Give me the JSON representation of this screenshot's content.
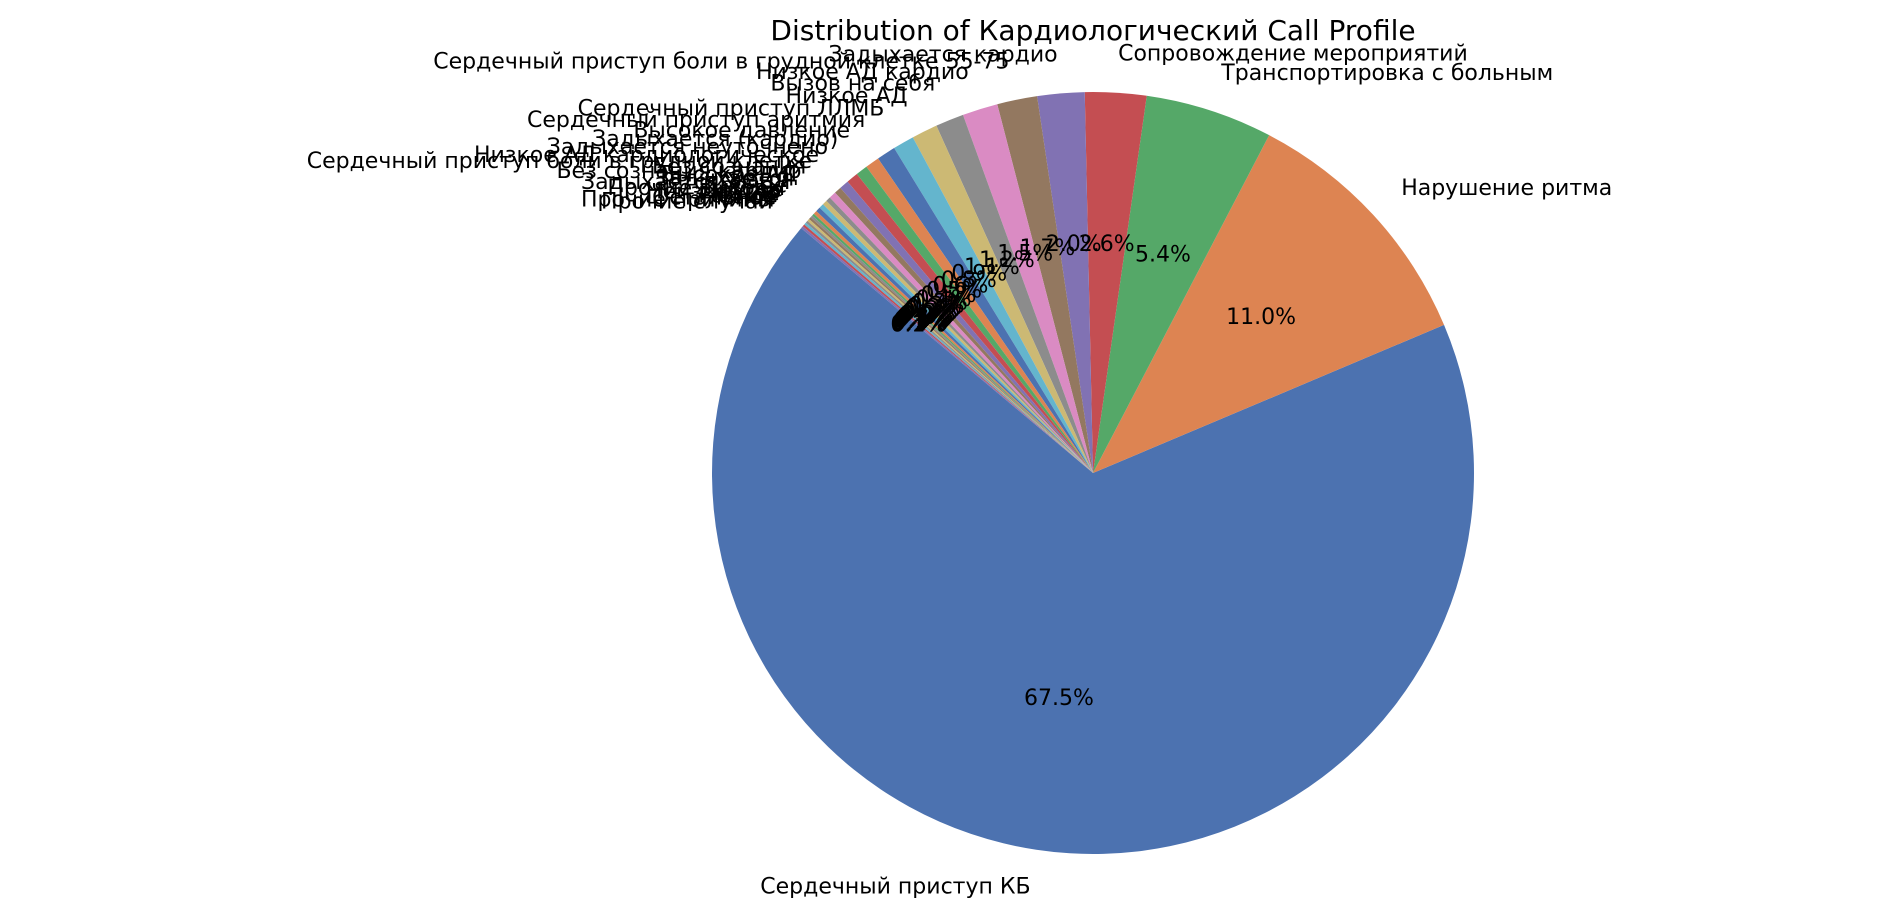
{
  "chart_data": {
    "type": "pie",
    "title": "Distribution of Кардиологический Call Profile",
    "start_angle_deg": 140,
    "direction": "counterclockwise",
    "slices": [
      {
        "label": "Сердечный приступ КБ",
        "value": 67.5,
        "pct_label": "67.5%",
        "color": "#4c72b0"
      },
      {
        "label": "Нарушение ритма",
        "value": 11.0,
        "pct_label": "11.0%",
        "color": "#dd8452"
      },
      {
        "label": "Транспортировка с больным",
        "value": 5.4,
        "pct_label": "5.4%",
        "color": "#55a868"
      },
      {
        "label": "Сопровождение мероприятий",
        "value": 2.6,
        "pct_label": "2.6%",
        "color": "#c44e52"
      },
      {
        "label": "Задыхается кардио",
        "value": 2.0,
        "pct_label": "2.0%",
        "color": "#8172b3"
      },
      {
        "label": "Сердечный приступ боли в грудной клетке 55-75",
        "value": 1.7,
        "pct_label": "1.7%",
        "color": "#937860"
      },
      {
        "label": "Низкое АД кардио",
        "value": 1.5,
        "pct_label": "1.5%",
        "color": "#da8bc3"
      },
      {
        "label": "Вызов на себя",
        "value": 1.2,
        "pct_label": "1.2%",
        "color": "#8c8c8c"
      },
      {
        "label": "Низкое АД",
        "value": 1.1,
        "pct_label": "1.1%",
        "color": "#ccb974"
      },
      {
        "label": "Сердечный приступ ЛЛМБ",
        "value": 0.9,
        "pct_label": "0.9%",
        "color": "#64b5cd"
      },
      {
        "label": "Сердечный приступ аритмия",
        "value": 0.8,
        "pct_label": "0.8%",
        "color": "#4c72b0"
      },
      {
        "label": "Высокое давление",
        "value": 0.6,
        "pct_label": "0.6%",
        "color": "#dd8452"
      },
      {
        "label": "Задыхается (кардио)",
        "value": 0.5,
        "pct_label": "0.5%",
        "color": "#55a868"
      },
      {
        "label": "Задыхается неуточнено",
        "value": 0.5,
        "pct_label": "0.5%",
        "color": "#c44e52"
      },
      {
        "label": "Низкое АД кардиологическое",
        "value": 0.4,
        "pct_label": "0.4%",
        "color": "#8172b3"
      },
      {
        "label": "Сердечный приступ боли в грудной клетке",
        "value": 0.3,
        "pct_label": "0.3%",
        "color": "#937860"
      },
      {
        "label": "Без сознания",
        "value": 0.3,
        "pct_label": "0.3%",
        "color": "#da8bc3"
      },
      {
        "label": "Без сознания кардио",
        "value": 0.2,
        "pct_label": "0.2%",
        "color": "#8c8c8c"
      },
      {
        "label": "Высокое АД",
        "value": 0.2,
        "pct_label": "0.2%",
        "color": "#ccb974"
      },
      {
        "label": "Задыхается",
        "value": 0.2,
        "pct_label": "0.2%",
        "color": "#64b5cd"
      },
      {
        "label": "Задыхается ХОБЛ",
        "value": 0.2,
        "pct_label": "0.2%",
        "color": "#4c72b0"
      },
      {
        "label": "Прочее",
        "value": 0.15,
        "pct_label": "0.2%",
        "color": "#dd8452"
      },
      {
        "label": "Прочие вызовы",
        "value": 0.1,
        "pct_label": "0.1%",
        "color": "#55a868"
      },
      {
        "label": "Другое",
        "value": 0.1,
        "pct_label": "0.1%",
        "color": "#8c8c8c"
      },
      {
        "label": "Неизвестно",
        "value": 0.1,
        "pct_label": "0.1%",
        "color": "#937860"
      },
      {
        "label": "Иное",
        "value": 0.1,
        "pct_label": "0.1%",
        "color": "#ccb974"
      },
      {
        "label": "Разное",
        "value": 0.1,
        "pct_label": "0.1%",
        "color": "#8c8c8c"
      },
      {
        "label": "Остальное",
        "value": 0.1,
        "pct_label": "0.1%",
        "color": "#64b5cd"
      },
      {
        "label": "Прочие причины",
        "value": 0.1,
        "pct_label": "0.1%",
        "color": "#c44e52"
      },
      {
        "label": "Прочие случаи",
        "value": 0.1,
        "pct_label": "0.1%",
        "color": "#8172b3"
      }
    ]
  }
}
